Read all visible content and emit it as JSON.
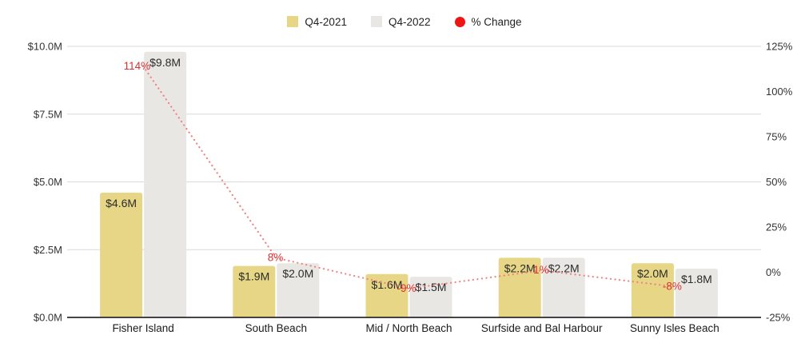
{
  "chart_data": {
    "type": "bar+line",
    "title": "",
    "categories": [
      "Fisher Island",
      "South Beach",
      "Mid / North Beach",
      "Surfside and Bal Harbour",
      "Sunny Isles Beach"
    ],
    "series": [
      {
        "name": "Q4-2021",
        "type": "bar",
        "color": "#e6d686",
        "values": [
          4.6,
          1.9,
          1.6,
          2.2,
          2.0
        ],
        "labels": [
          "$4.6M",
          "$1.9M",
          "$1.6M",
          "$2.2M",
          "$2.0M"
        ]
      },
      {
        "name": "Q4-2022",
        "type": "bar",
        "color": "#e9e7e4",
        "values": [
          9.8,
          2.0,
          1.5,
          2.2,
          1.8
        ],
        "labels": [
          "$9.8M",
          "$2.0M",
          "$1.5M",
          "$2.2M",
          "$1.8M"
        ]
      },
      {
        "name": "% Change",
        "type": "line",
        "axis": "right",
        "line_color": "#ef8282",
        "label_color": "#d93232",
        "line_style": "dotted",
        "values": [
          114,
          8,
          -9,
          1,
          -8
        ],
        "labels": [
          "114%",
          "8%",
          "-9%",
          "1%",
          "-8%"
        ]
      }
    ],
    "left_axis": {
      "range": [
        0,
        10
      ],
      "tick_values": [
        0,
        2.5,
        5,
        7.5,
        10
      ],
      "tick_labels": [
        "$0.0M",
        "$2.5M",
        "$5.0M",
        "$7.5M",
        "$10.0M"
      ]
    },
    "right_axis": {
      "range": [
        -25,
        125
      ],
      "tick_values": [
        -25,
        0,
        25,
        50,
        75,
        100,
        125
      ],
      "tick_labels": [
        "-25%",
        "0%",
        "25%",
        "50%",
        "75%",
        "100%",
        "125%"
      ]
    },
    "legend": [
      {
        "label": "Q4-2021",
        "swatch": "square",
        "color": "#e6d686"
      },
      {
        "label": "Q4-2022",
        "swatch": "square",
        "color": "#e9e7e4"
      },
      {
        "label": "% Change",
        "swatch": "circle",
        "color": "#ee1515"
      }
    ],
    "grid": true,
    "legend_position": "top-center",
    "colors": {
      "gridline": "#d9d9d9",
      "axis_line": "#2b2b2b",
      "tick_text": "#333333",
      "bar_value_text": "#2b2b2b",
      "category_text": "#1a1a1a"
    }
  }
}
